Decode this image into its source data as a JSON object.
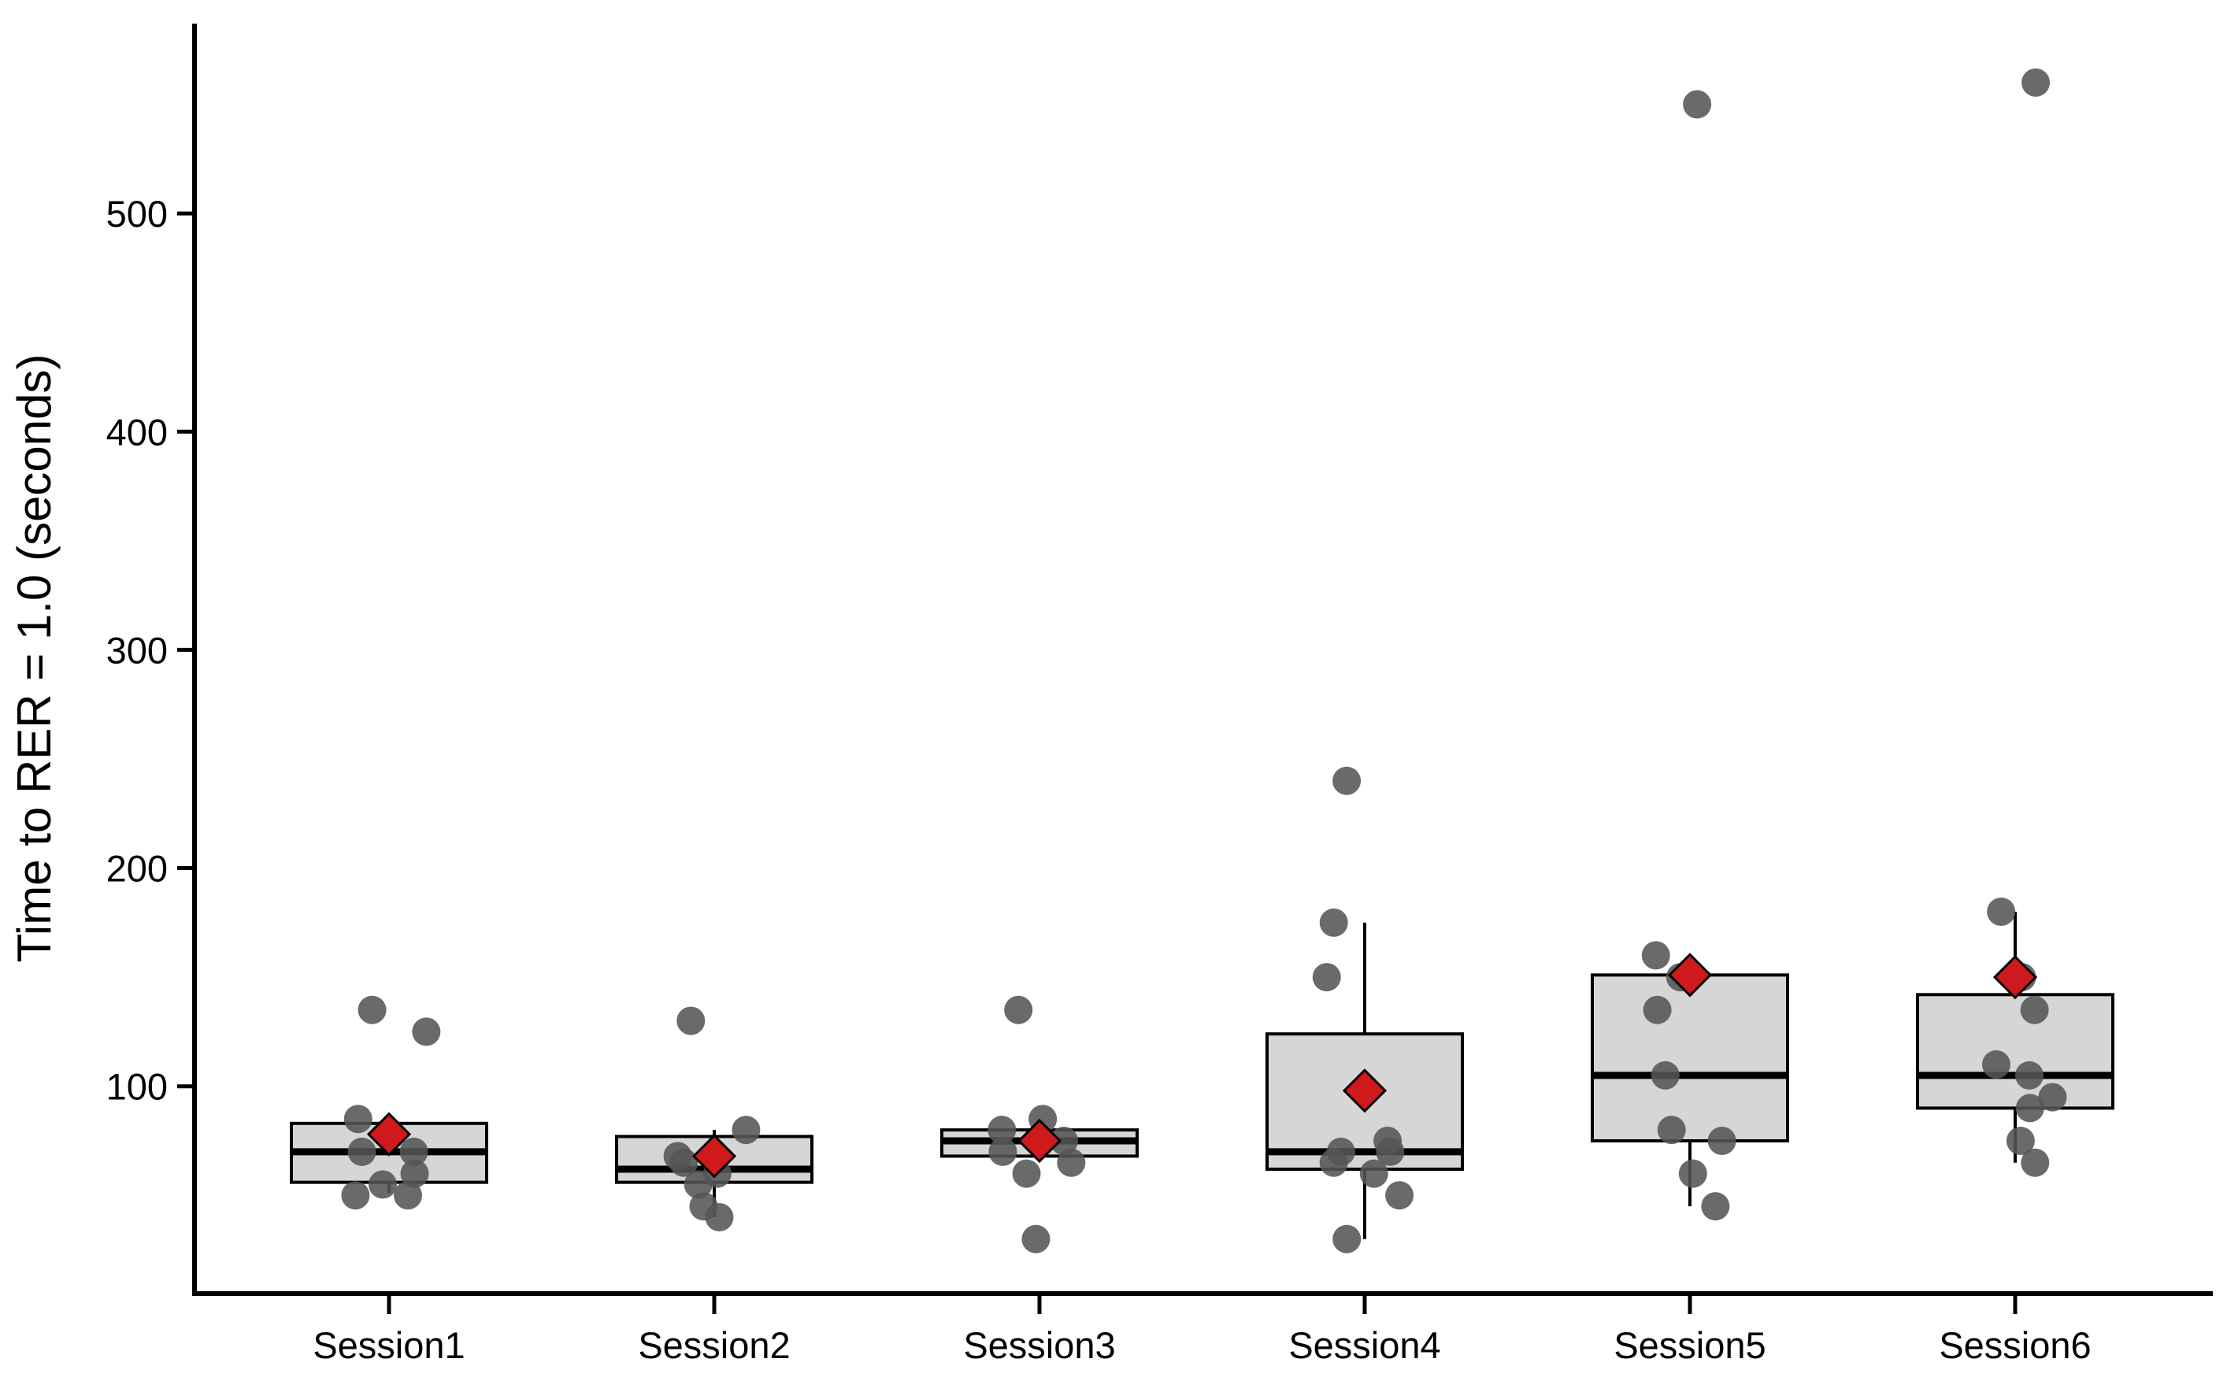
{
  "chart_data": {
    "type": "box",
    "title": "",
    "xlabel": "",
    "ylabel": "Time to RER = 1.0 (seconds)",
    "ylim": [
      5,
      587
    ],
    "yticks": [
      100,
      200,
      300,
      400,
      500
    ],
    "categories": [
      "Session1",
      "Session2",
      "Session3",
      "Session4",
      "Session5",
      "Session6"
    ],
    "boxes": [
      {
        "q1": 56,
        "median": 70,
        "q3": 83,
        "whisker_low": 51,
        "whisker_high": 83,
        "mean": 78
      },
      {
        "q1": 56,
        "median": 62,
        "q3": 77,
        "whisker_low": 40,
        "whisker_high": 80,
        "mean": 68
      },
      {
        "q1": 68,
        "median": 75,
        "q3": 80,
        "whisker_low": 68,
        "whisker_high": 80,
        "mean": 75
      },
      {
        "q1": 62,
        "median": 70,
        "q3": 124,
        "whisker_low": 30,
        "whisker_high": 175,
        "mean": 98
      },
      {
        "q1": 75,
        "median": 105,
        "q3": 151,
        "whisker_low": 45,
        "whisker_high": 151,
        "mean": 151
      },
      {
        "q1": 90,
        "median": 105,
        "q3": 142,
        "whisker_low": 65,
        "whisker_high": 180,
        "mean": 150
      }
    ],
    "points": [
      [
        50,
        50,
        55,
        60,
        70,
        70,
        85,
        125,
        135
      ],
      [
        40,
        45,
        55,
        60,
        65,
        68,
        80,
        130
      ],
      [
        30,
        60,
        65,
        70,
        75,
        80,
        85,
        135
      ],
      [
        30,
        50,
        60,
        65,
        70,
        70,
        75,
        150,
        175,
        240
      ],
      [
        45,
        60,
        75,
        80,
        105,
        135,
        150,
        160,
        550
      ],
      [
        65,
        75,
        90,
        95,
        105,
        110,
        135,
        150,
        180,
        560
      ]
    ],
    "colors": {
      "box_fill": "#d6d6d6",
      "box_stroke": "#000000",
      "point": "#555555",
      "mean_marker": "#d0191d"
    }
  }
}
